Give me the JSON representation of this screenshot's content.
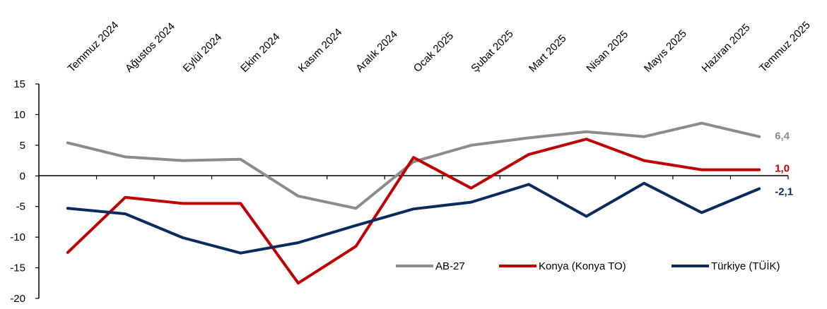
{
  "chart_data": {
    "type": "line",
    "categories": [
      "Temmuz 2024",
      "Ağustos 2024",
      "Eylül 2024",
      "Ekim 2024",
      "Kasım 2024",
      "Aralık 2024",
      "Ocak 2025",
      "Şubat 2025",
      "Mart 2025",
      "Nisan 2025",
      "Mayıs 2025",
      "Haziran 2025",
      "Temmuz 2025"
    ],
    "series": [
      {
        "name": "AB-27",
        "color": "#8c8c8c",
        "values": [
          5.4,
          3.1,
          2.5,
          2.7,
          -3.3,
          -5.3,
          2.3,
          5.0,
          6.2,
          7.2,
          6.4,
          8.6,
          6.4
        ],
        "end_label": "6,4"
      },
      {
        "name": "Konya (Konya TO)",
        "color": "#c00000",
        "values": [
          -12.5,
          -3.5,
          -4.5,
          -4.5,
          -17.5,
          -11.5,
          3.0,
          -2.0,
          3.5,
          6.0,
          2.5,
          1.0,
          1.0
        ],
        "end_label": "1,0"
      },
      {
        "name": "Türkiye (TÜİK)",
        "color": "#0d2a5e",
        "values": [
          -5.3,
          -6.2,
          -10.1,
          -12.6,
          -10.9,
          -8.1,
          -5.4,
          -4.3,
          -1.4,
          -6.6,
          -1.2,
          -6.0,
          -2.1
        ],
        "end_label": "-2,1"
      }
    ],
    "y_ticks": [
      "15",
      "10",
      "5",
      "0",
      "-5",
      "-10",
      "-15",
      "-20"
    ],
    "ylim": [
      -20,
      15
    ],
    "legend_position": "bottom-right",
    "grid": false
  }
}
